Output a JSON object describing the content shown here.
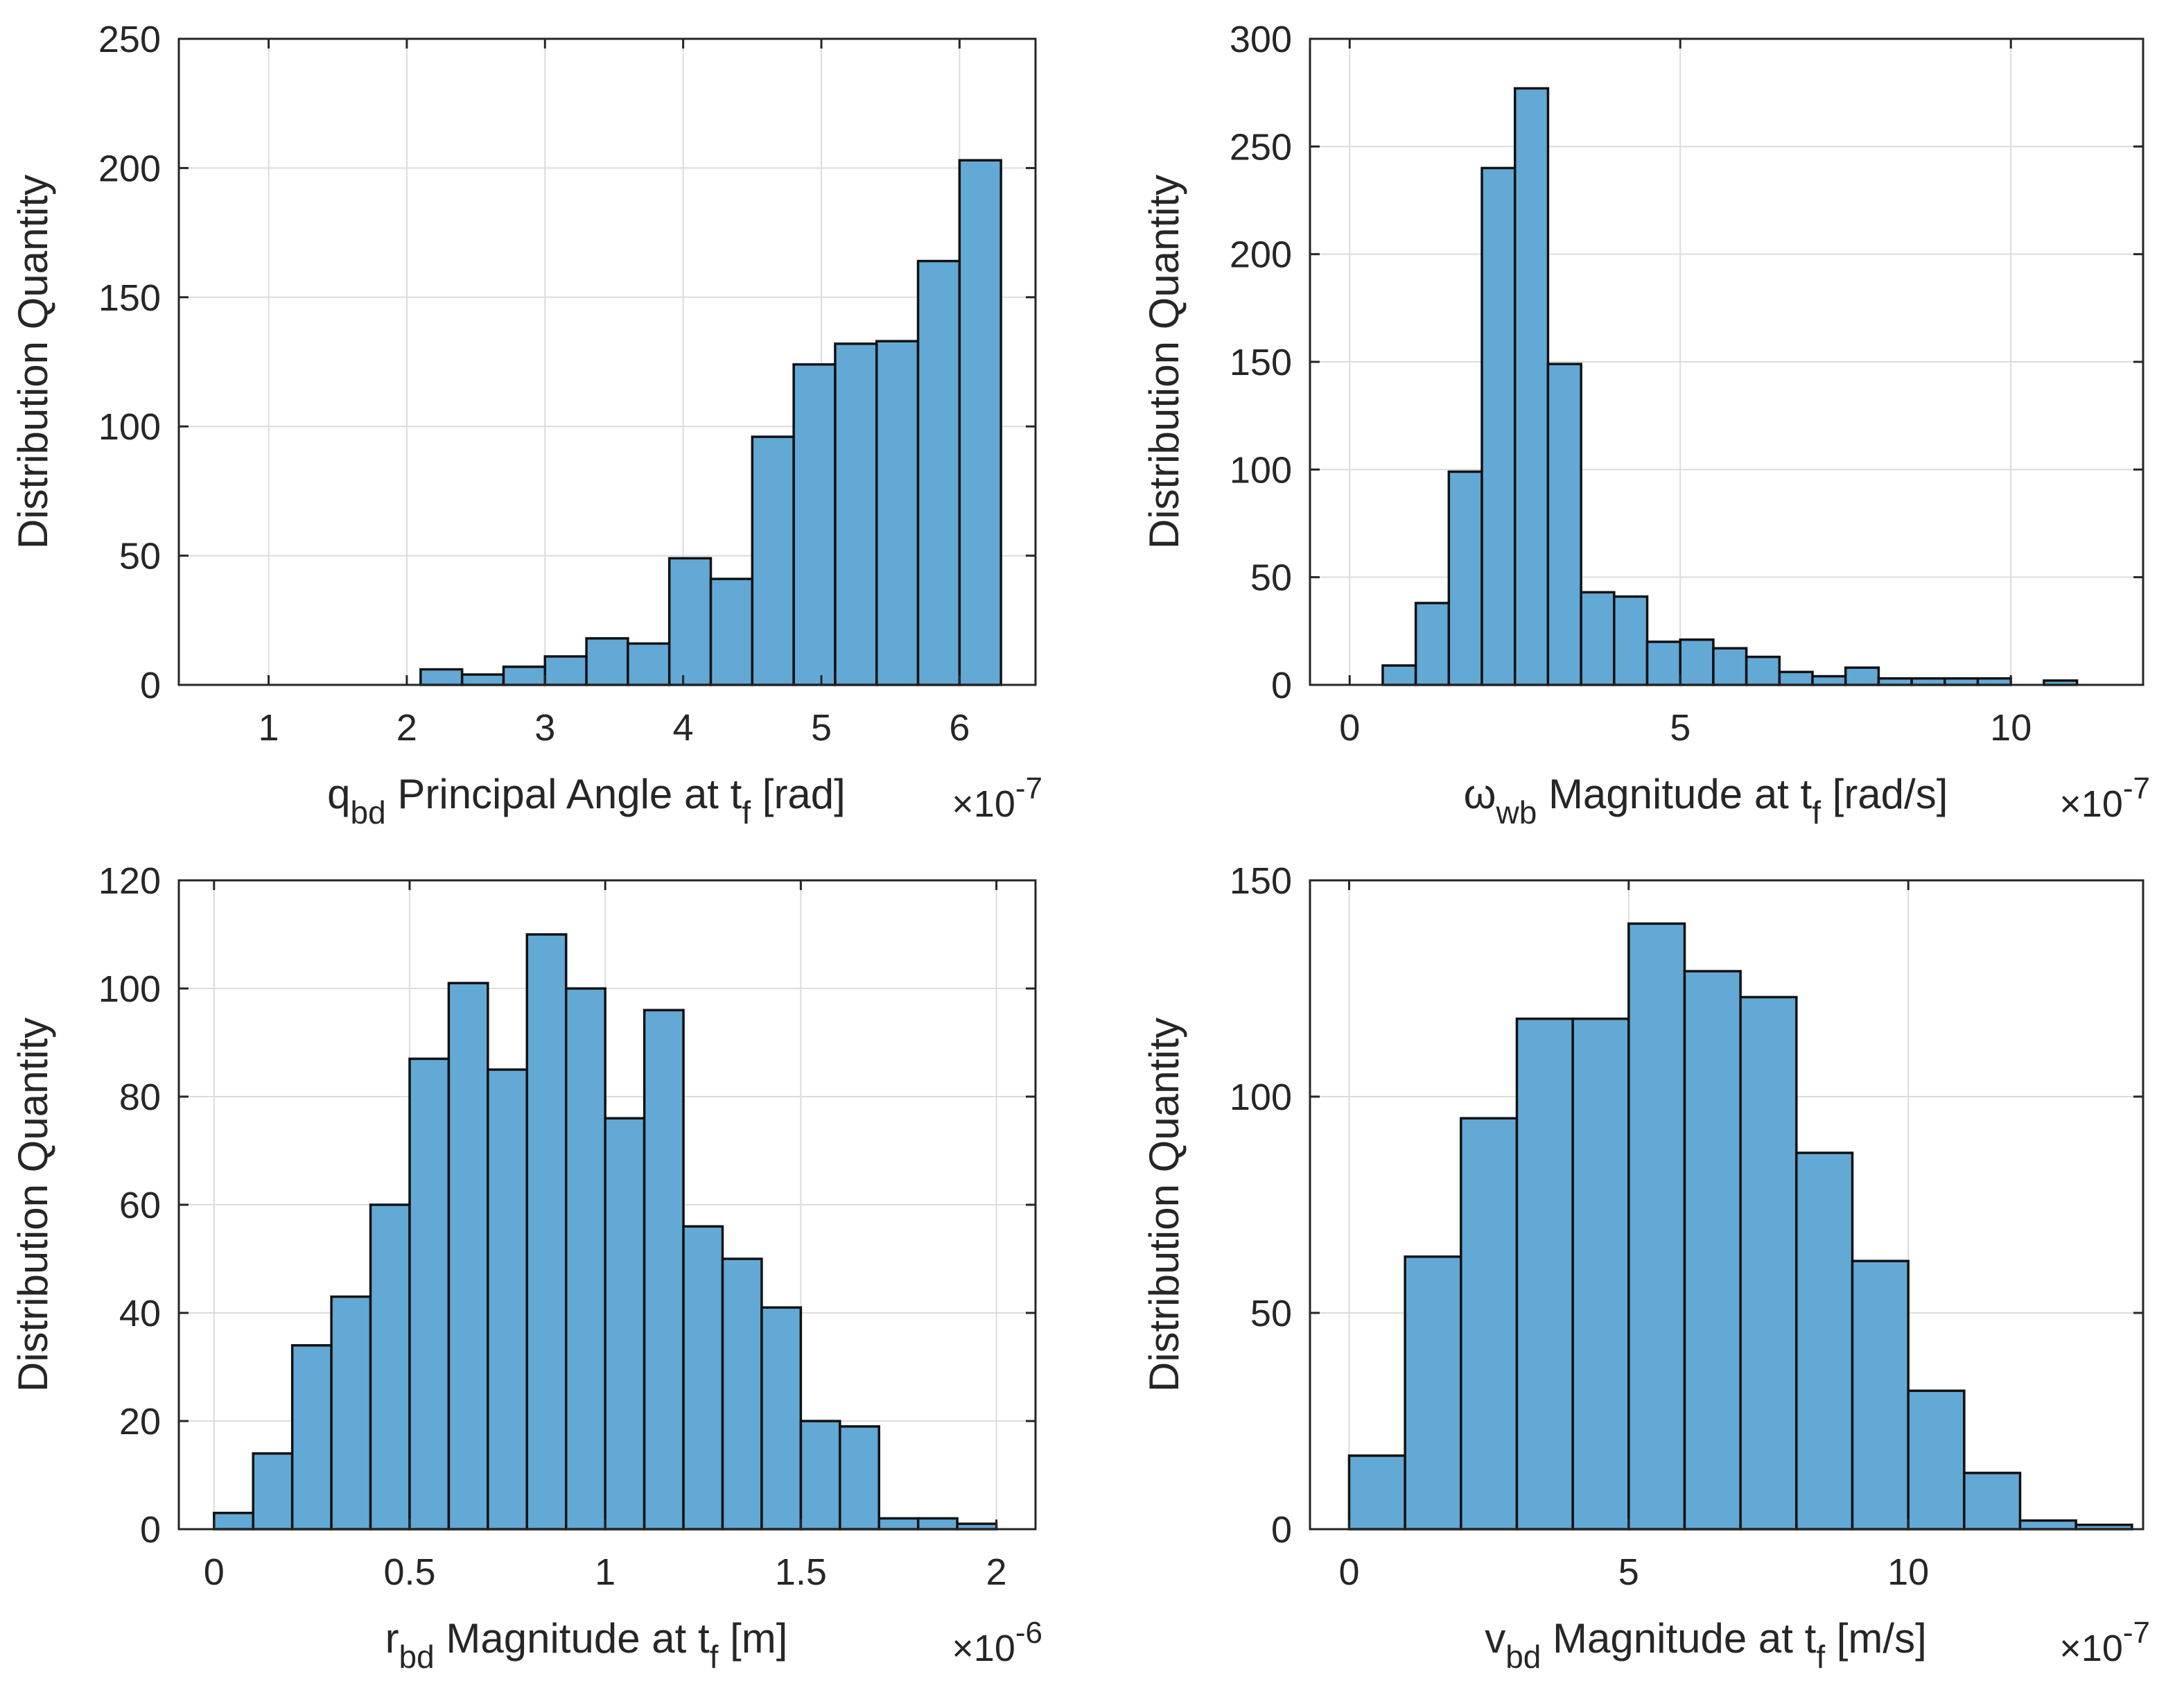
{
  "figure": {
    "bar_color": "#62a9d6",
    "edge_color": "#111111",
    "grid_color": "#dcdcdc"
  },
  "chart_data": [
    {
      "type": "bar",
      "subtype": "histogram",
      "title": "",
      "ylabel": "Distribution Quantity",
      "xlabel": {
        "main": "q",
        "sub": "bd",
        "mid": " Principal Angle at t",
        "sub2": "f",
        "tail": " [rad]"
      },
      "exponent": {
        "prefix": "×10",
        "power": "-7"
      },
      "xlim": [
        0.35,
        6.55
      ],
      "ylim": [
        0,
        250
      ],
      "xticks": [
        1,
        2,
        3,
        4,
        5,
        6
      ],
      "xtick_labels": [
        "1",
        "2",
        "3",
        "4",
        "5",
        "6"
      ],
      "yticks": [
        0,
        50,
        100,
        150,
        200,
        250
      ],
      "ytick_labels": [
        "0",
        "50",
        "100",
        "150",
        "200",
        "250"
      ],
      "grid": true,
      "bin_edges": [
        2.1,
        2.4,
        2.7,
        3.0,
        3.3,
        3.6,
        3.9,
        4.2,
        4.5,
        4.8,
        5.1,
        5.4,
        5.7,
        6.0,
        6.3
      ],
      "values": [
        6,
        4,
        7,
        11,
        18,
        16,
        49,
        41,
        96,
        124,
        132,
        133,
        164,
        203
      ]
    },
    {
      "type": "bar",
      "subtype": "histogram",
      "title": "",
      "ylabel": "Distribution Quantity",
      "xlabel": {
        "main": "ω",
        "sub": "wb",
        "mid": " Magnitude at t",
        "sub2": "f",
        "tail": " [rad/s]"
      },
      "exponent": {
        "prefix": "×10",
        "power": "-7"
      },
      "xlim": [
        -0.6,
        12.0
      ],
      "ylim": [
        0,
        300
      ],
      "xticks": [
        0,
        5,
        10
      ],
      "xtick_labels": [
        "0",
        "5",
        "10"
      ],
      "yticks": [
        0,
        50,
        100,
        150,
        200,
        250,
        300
      ],
      "ytick_labels": [
        "0",
        "50",
        "100",
        "150",
        "200",
        "250",
        "300"
      ],
      "grid": true,
      "bin_edges": [
        0.5,
        1.0,
        1.5,
        2.0,
        2.5,
        3.0,
        3.5,
        4.0,
        4.5,
        5.0,
        5.5,
        6.0,
        6.5,
        7.0,
        7.5,
        8.0,
        8.5,
        9.0,
        9.5,
        10.0,
        10.5,
        11.0
      ],
      "values": [
        9,
        38,
        99,
        240,
        277,
        149,
        43,
        41,
        20,
        21,
        17,
        13,
        6,
        4,
        8,
        3,
        3,
        3,
        3,
        0,
        2
      ]
    },
    {
      "type": "bar",
      "subtype": "histogram",
      "title": "",
      "ylabel": "Distribution Quantity",
      "xlabel": {
        "main": "r",
        "sub": "bd",
        "mid": " Magnitude at t",
        "sub2": "f",
        "tail": " [m]"
      },
      "exponent": {
        "prefix": "×10",
        "power": "-6"
      },
      "xlim": [
        -0.09,
        2.1
      ],
      "ylim": [
        0,
        120
      ],
      "xticks": [
        0,
        0.5,
        1,
        1.5,
        2
      ],
      "xtick_labels": [
        "0",
        "0.5",
        "1",
        "1.5",
        "2"
      ],
      "yticks": [
        0,
        20,
        40,
        60,
        80,
        100,
        120
      ],
      "ytick_labels": [
        "0",
        "20",
        "40",
        "60",
        "80",
        "100",
        "120"
      ],
      "grid": true,
      "bin_edges": [
        0.0,
        0.1,
        0.2,
        0.3,
        0.4,
        0.5,
        0.6,
        0.7,
        0.8,
        0.9,
        1.0,
        1.1,
        1.2,
        1.3,
        1.4,
        1.5,
        1.6,
        1.7,
        1.8,
        1.9,
        2.0
      ],
      "values": [
        3,
        14,
        34,
        43,
        60,
        87,
        101,
        85,
        110,
        100,
        76,
        96,
        56,
        50,
        41,
        20,
        19,
        2,
        2,
        1
      ]
    },
    {
      "type": "bar",
      "subtype": "histogram",
      "title": "",
      "ylabel": "Distribution Quantity",
      "xlabel": {
        "main": "v",
        "sub": "bd",
        "mid": " Magnitude at t",
        "sub2": "f",
        "tail": " [m/s]"
      },
      "exponent": {
        "prefix": "×10",
        "power": "-7"
      },
      "xlim": [
        -0.7,
        14.2
      ],
      "ylim": [
        0,
        150
      ],
      "xticks": [
        0,
        5,
        10
      ],
      "xtick_labels": [
        "0",
        "5",
        "10"
      ],
      "yticks": [
        0,
        50,
        100,
        150
      ],
      "ytick_labels": [
        "0",
        "50",
        "100",
        "150"
      ],
      "grid": true,
      "bin_edges": [
        0,
        1,
        2,
        3,
        4,
        5,
        6,
        7,
        8,
        9,
        10,
        11,
        12,
        13,
        14
      ],
      "values": [
        17,
        63,
        95,
        118,
        118,
        140,
        129,
        123,
        87,
        62,
        32,
        13,
        2,
        1
      ]
    }
  ]
}
